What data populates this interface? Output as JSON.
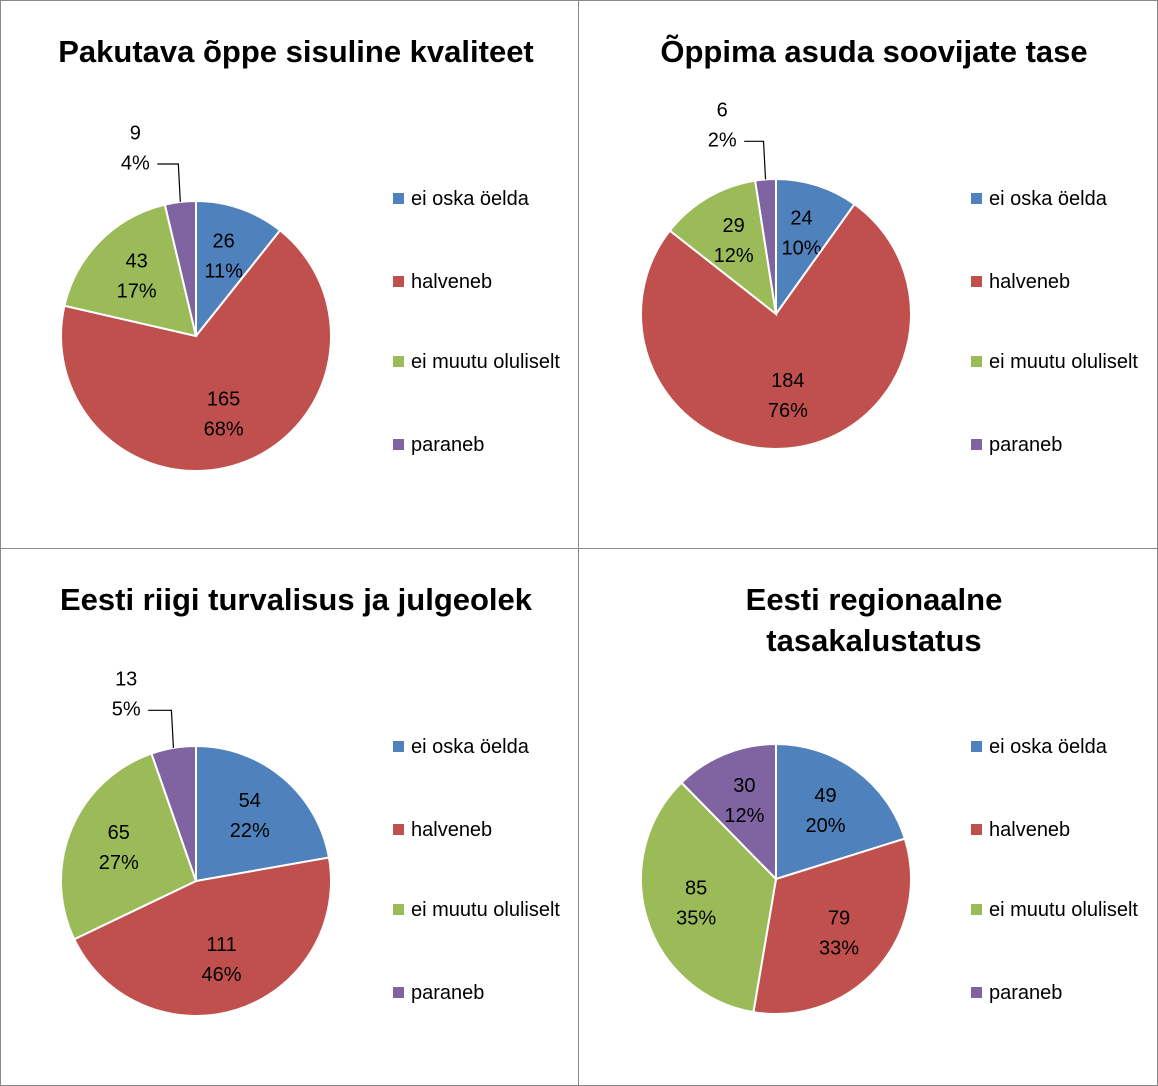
{
  "chart_data": [
    {
      "type": "pie",
      "title": "Pakutava õppe sisuline kvaliteet",
      "categories": [
        "ei oska öelda",
        "halveneb",
        "ei muutu oluliselt",
        "paraneb"
      ],
      "values": [
        26,
        165,
        43,
        9
      ],
      "percent_labels": [
        "11%",
        "68%",
        "17%",
        "4%"
      ],
      "colors": [
        "#4f81bd",
        "#c0504d",
        "#9bbb59",
        "#8064a2"
      ],
      "legend": "right"
    },
    {
      "type": "pie",
      "title": "Õppima asuda soovijate tase",
      "categories": [
        "ei oska öelda",
        "halveneb",
        "ei muutu oluliselt",
        "paraneb"
      ],
      "values": [
        24,
        184,
        29,
        6
      ],
      "percent_labels": [
        "10%",
        "76%",
        "12%",
        "2%"
      ],
      "colors": [
        "#4f81bd",
        "#c0504d",
        "#9bbb59",
        "#8064a2"
      ],
      "legend": "right"
    },
    {
      "type": "pie",
      "title": "Eesti riigi turvalisus ja julgeolek",
      "categories": [
        "ei oska öelda",
        "halveneb",
        "ei muutu oluliselt",
        "paraneb"
      ],
      "values": [
        54,
        111,
        65,
        13
      ],
      "percent_labels": [
        "22%",
        "46%",
        "27%",
        "5%"
      ],
      "colors": [
        "#4f81bd",
        "#c0504d",
        "#9bbb59",
        "#8064a2"
      ],
      "legend": "right"
    },
    {
      "type": "pie",
      "title": "Eesti regionaalne tasakalustatus",
      "categories": [
        "ei oska öelda",
        "halveneb",
        "ei muutu oluliselt",
        "paraneb"
      ],
      "values": [
        49,
        79,
        85,
        30
      ],
      "percent_labels": [
        "20%",
        "33%",
        "35%",
        "12%"
      ],
      "colors": [
        "#4f81bd",
        "#c0504d",
        "#9bbb59",
        "#8064a2"
      ],
      "legend": "right"
    }
  ]
}
